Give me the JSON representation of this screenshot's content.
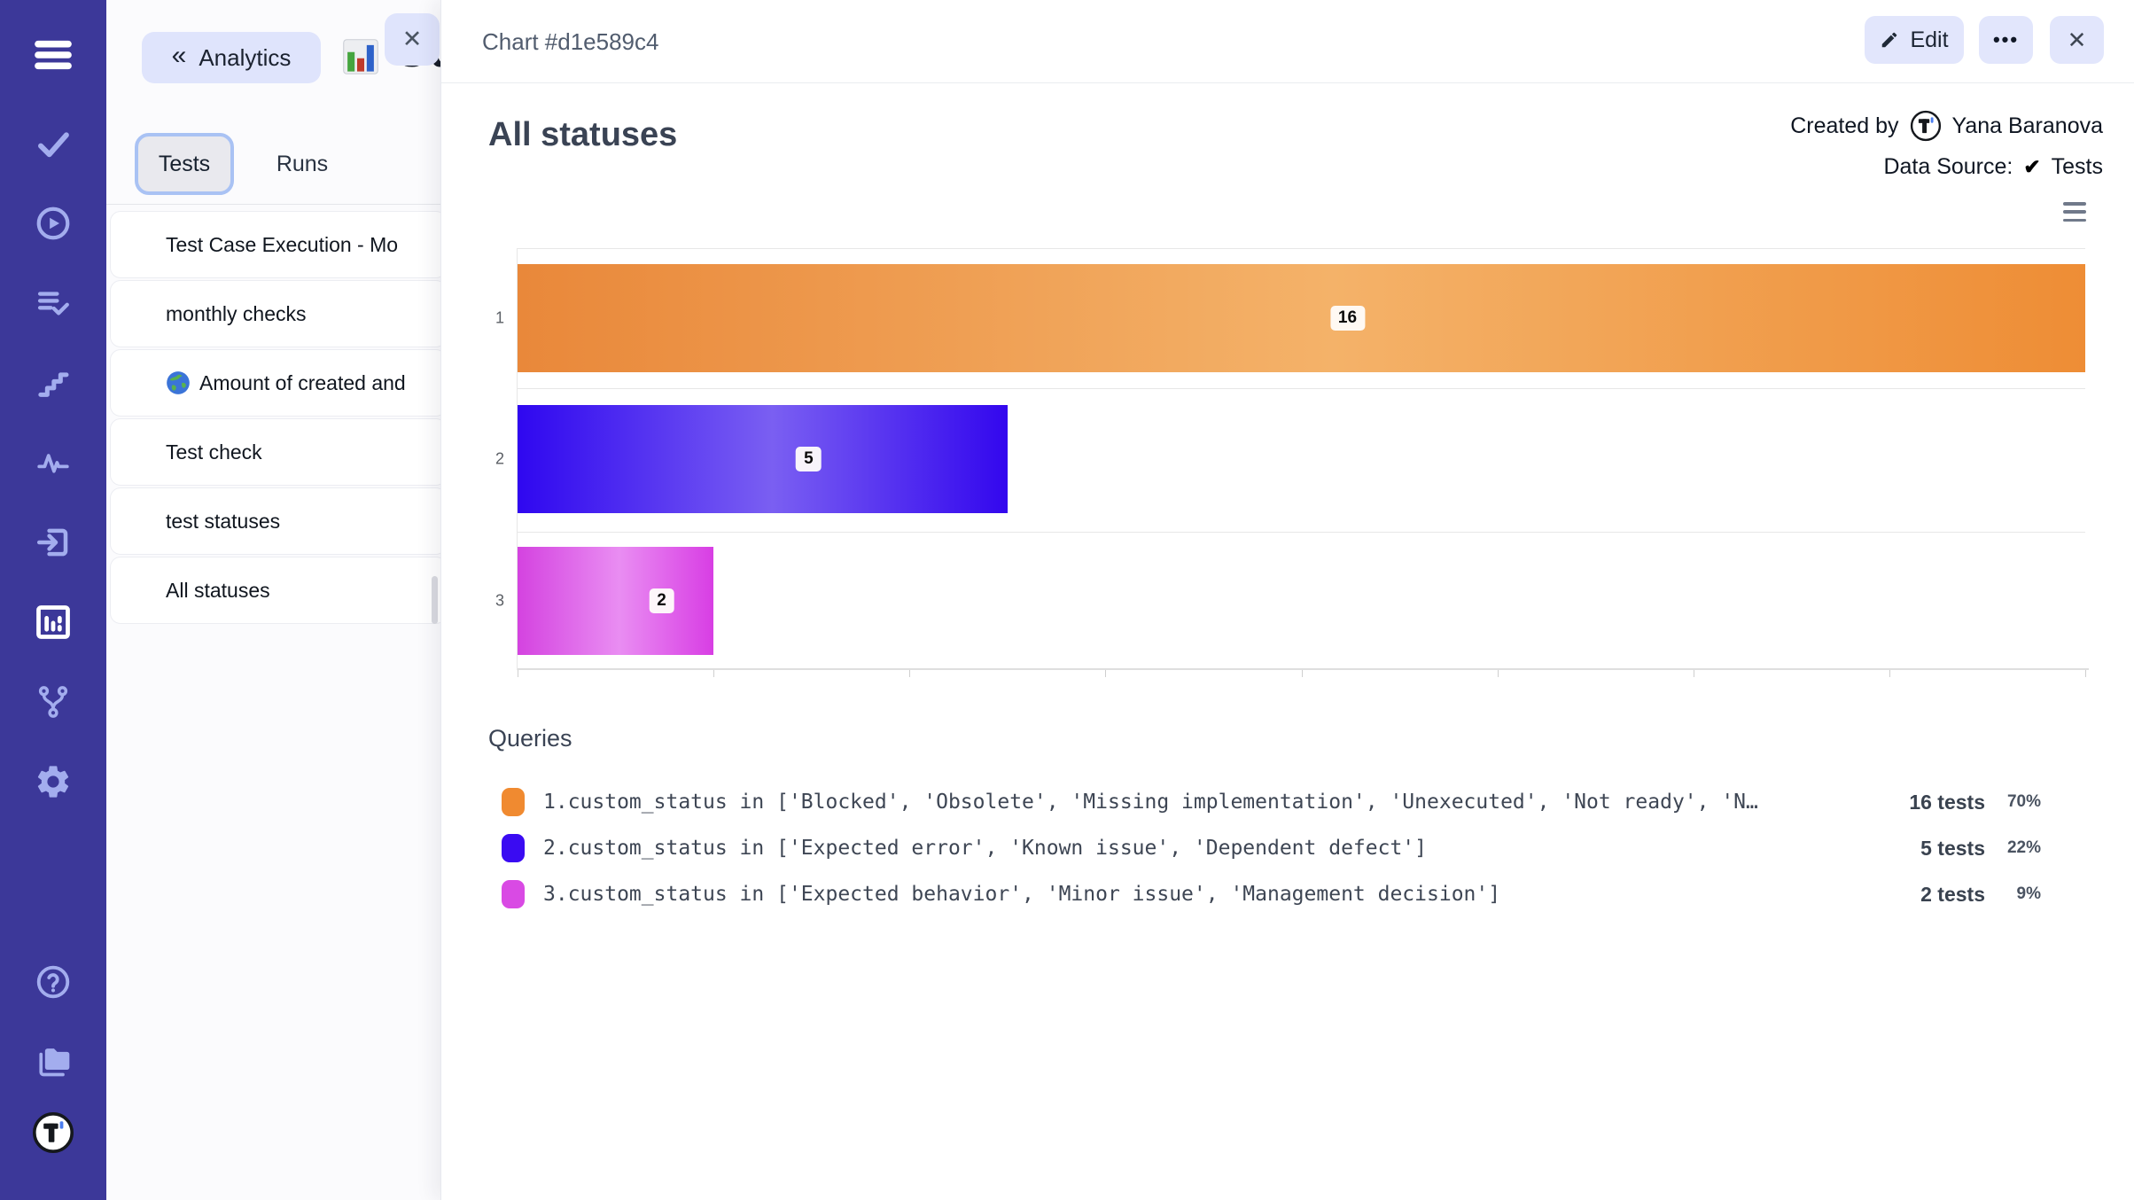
{
  "colors": {
    "sidebar_bg": "#3c3899",
    "sidebar_icon": "#a3adee",
    "sidebar_icon_active": "#ffffff",
    "pill_bg": "#dfe4fc",
    "accent_border": "#a9c2f4",
    "bar_orange": {
      "from": "#e9883a",
      "mid": "#f4b269",
      "to": "#ee8d35"
    },
    "bar_blue": {
      "from": "#2f07f0",
      "mid": "#7a5ff2",
      "to": "#3307ee"
    },
    "bar_magenta": {
      "from": "#d443e0",
      "mid": "#e98df2",
      "to": "#d83ee4"
    }
  },
  "sidebar": {
    "icons": [
      {
        "name": "menu-icon",
        "active": false
      },
      {
        "name": "tests-check-icon",
        "active": false
      },
      {
        "name": "runs-play-icon",
        "active": false
      },
      {
        "name": "test-plans-icon",
        "active": false
      },
      {
        "name": "milestones-steps-icon",
        "active": false
      },
      {
        "name": "pulse-icon",
        "active": false
      },
      {
        "name": "import-icon",
        "active": false
      },
      {
        "name": "analytics-chart-icon",
        "active": true
      },
      {
        "name": "branch-icon",
        "active": false
      },
      {
        "name": "settings-gear-icon",
        "active": false
      },
      {
        "name": "help-icon",
        "active": false
      },
      {
        "name": "projects-folder-icon",
        "active": false
      },
      {
        "name": "logo-avatar",
        "active": false
      }
    ]
  },
  "panel": {
    "back_label": "Analytics",
    "back_chevron": "«",
    "clipped_title": "Cu",
    "close_glyph": "✕",
    "tabs": [
      {
        "label": "Tests",
        "active": true
      },
      {
        "label": "Runs",
        "active": false
      }
    ],
    "items": [
      {
        "icon": null,
        "label": "Test Case Execution - Mo"
      },
      {
        "icon": null,
        "label": "monthly checks"
      },
      {
        "icon": "globe-icon",
        "label": "Amount of created and"
      },
      {
        "icon": null,
        "label": "Test check"
      },
      {
        "icon": null,
        "label": "test statuses"
      },
      {
        "icon": null,
        "label": "All statuses"
      }
    ]
  },
  "overlay": {
    "header": {
      "title": "Chart #d1e589c4",
      "edit_label": "Edit",
      "more_glyph": "•••",
      "close_glyph": "✕"
    },
    "meta": {
      "created_by_label": "Created by",
      "created_by_name": "Yana Baranova",
      "data_source_label": "Data Source:",
      "data_source_check": "✔",
      "data_source_value": "Tests"
    }
  },
  "chart_data": {
    "type": "bar",
    "orientation": "horizontal",
    "title": "All statuses",
    "categories": [
      "1",
      "2",
      "3"
    ],
    "values": [
      16,
      5,
      2
    ],
    "data_labels": [
      "16",
      "5",
      "2"
    ],
    "xlim": [
      0,
      16
    ],
    "x_tick_interval": 2,
    "legend_position": "bottom",
    "grid": "x ticks below axis, horizontal row separators",
    "series_colors": [
      "bar_orange",
      "bar_blue",
      "bar_magenta"
    ]
  },
  "queries": {
    "heading": "Queries",
    "rows": [
      {
        "color": "#f08a30",
        "query": "1.custom_status in ['Blocked', 'Obsolete', 'Missing implementation', 'Unexecuted', 'Not ready', 'N…",
        "tests": "16 tests",
        "percent": "70%"
      },
      {
        "color": "#3a0bf2",
        "query": "2.custom_status in ['Expected error', 'Known issue', 'Dependent defect']",
        "tests": "5 tests",
        "percent": "22%"
      },
      {
        "color": "#d94ae4",
        "query": "3.custom_status in ['Expected behavior', 'Minor issue', 'Management decision']",
        "tests": "2 tests",
        "percent": "9%"
      }
    ]
  }
}
